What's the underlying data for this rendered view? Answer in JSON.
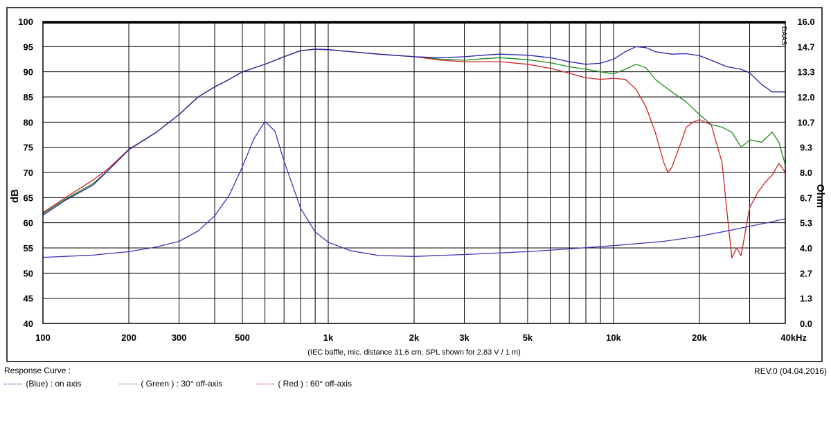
{
  "chart_data": {
    "type": "line",
    "caption": "(IEC baffle, mic. distance 31.6 cm, SPL shown for 2.83 V / 1 m)",
    "ylabel": "dB",
    "y2label": "Ohm",
    "watermark": "DAAS",
    "xscale": "log",
    "xlim": [
      100,
      40000
    ],
    "ylim": [
      40,
      100
    ],
    "y2lim": [
      0,
      16
    ],
    "grid": true,
    "x_ticks": [
      {
        "v": 100,
        "label": "100"
      },
      {
        "v": 200,
        "label": "200"
      },
      {
        "v": 300,
        "label": "300"
      },
      {
        "v": 500,
        "label": "500"
      },
      {
        "v": 1000,
        "label": "1k"
      },
      {
        "v": 2000,
        "label": "2k"
      },
      {
        "v": 3000,
        "label": "3k"
      },
      {
        "v": 5000,
        "label": "5k"
      },
      {
        "v": 10000,
        "label": "10k"
      },
      {
        "v": 20000,
        "label": "20k"
      },
      {
        "v": 40000,
        "label": "40kHz"
      }
    ],
    "y_ticks": [
      "100",
      "95",
      "90",
      "85",
      "80",
      "75",
      "70",
      "65",
      "60",
      "55",
      "50",
      "45",
      "40"
    ],
    "y2_ticks": [
      "16.0",
      "14.7",
      "13.3",
      "12.0",
      "10.7",
      "9.3",
      "8.0",
      "6.7",
      "5.3",
      "4.0",
      "2.7",
      "1.3",
      "0.0"
    ],
    "series": [
      {
        "name": "(Blue) : on axis",
        "color": "#2424a8",
        "points": [
          [
            100,
            61.5
          ],
          [
            120,
            64.5
          ],
          [
            150,
            67.5
          ],
          [
            170,
            70.5
          ],
          [
            200,
            74.5
          ],
          [
            250,
            78
          ],
          [
            300,
            81.5
          ],
          [
            350,
            85
          ],
          [
            400,
            87
          ],
          [
            450,
            88.5
          ],
          [
            500,
            90
          ],
          [
            600,
            91.5
          ],
          [
            700,
            93
          ],
          [
            800,
            94.2
          ],
          [
            900,
            94.5
          ],
          [
            1000,
            94.4
          ],
          [
            1200,
            94
          ],
          [
            1500,
            93.5
          ],
          [
            2000,
            93
          ],
          [
            2500,
            92.8
          ],
          [
            3000,
            93
          ],
          [
            3500,
            93.3
          ],
          [
            4000,
            93.5
          ],
          [
            5000,
            93.3
          ],
          [
            6000,
            92.8
          ],
          [
            7000,
            92
          ],
          [
            8000,
            91.5
          ],
          [
            9000,
            91.7
          ],
          [
            10000,
            92.5
          ],
          [
            11000,
            94
          ],
          [
            12000,
            95
          ],
          [
            13000,
            94.8
          ],
          [
            14000,
            94
          ],
          [
            16000,
            93.5
          ],
          [
            18000,
            93.6
          ],
          [
            20000,
            93.2
          ],
          [
            22000,
            92.3
          ],
          [
            25000,
            91
          ],
          [
            28000,
            90.5
          ],
          [
            30000,
            89.8
          ],
          [
            33000,
            87.5
          ],
          [
            36000,
            86
          ],
          [
            40000,
            86
          ]
        ]
      },
      {
        "name": "( Green ) : 30° off-axis",
        "color": "#1c8a1c",
        "points": [
          [
            100,
            61.8
          ],
          [
            120,
            64.7
          ],
          [
            150,
            67.8
          ],
          [
            170,
            70.5
          ],
          [
            200,
            74.6
          ],
          [
            250,
            78
          ],
          [
            300,
            81.5
          ],
          [
            350,
            85
          ],
          [
            400,
            87
          ],
          [
            450,
            88.5
          ],
          [
            500,
            90
          ],
          [
            600,
            91.5
          ],
          [
            700,
            93
          ],
          [
            800,
            94.2
          ],
          [
            900,
            94.5
          ],
          [
            1000,
            94.4
          ],
          [
            1200,
            94
          ],
          [
            1500,
            93.5
          ],
          [
            2000,
            93
          ],
          [
            2500,
            92.5
          ],
          [
            3000,
            92.3
          ],
          [
            3500,
            92.6
          ],
          [
            4000,
            92.8
          ],
          [
            5000,
            92.4
          ],
          [
            6000,
            91.8
          ],
          [
            7000,
            91
          ],
          [
            8000,
            90.5
          ],
          [
            9000,
            90
          ],
          [
            10000,
            89.6
          ],
          [
            11000,
            90.5
          ],
          [
            12000,
            91.5
          ],
          [
            13000,
            90.8
          ],
          [
            14000,
            88.5
          ],
          [
            16000,
            86
          ],
          [
            18000,
            84
          ],
          [
            20000,
            81.5
          ],
          [
            22000,
            79.5
          ],
          [
            24000,
            79
          ],
          [
            26000,
            78
          ],
          [
            28000,
            75
          ],
          [
            30000,
            76.5
          ],
          [
            33000,
            76
          ],
          [
            36000,
            78
          ],
          [
            38000,
            76
          ],
          [
            40000,
            71.5
          ]
        ]
      },
      {
        "name": "( Red ) : 60° off-axis",
        "color": "#cc2222",
        "points": [
          [
            100,
            62
          ],
          [
            120,
            65
          ],
          [
            150,
            68.5
          ],
          [
            170,
            70.8
          ],
          [
            200,
            74.6
          ],
          [
            250,
            78
          ],
          [
            300,
            81.5
          ],
          [
            350,
            85
          ],
          [
            400,
            87
          ],
          [
            450,
            88.5
          ],
          [
            500,
            90
          ],
          [
            600,
            91.5
          ],
          [
            700,
            93
          ],
          [
            800,
            94.2
          ],
          [
            900,
            94.5
          ],
          [
            1000,
            94.4
          ],
          [
            1200,
            94
          ],
          [
            1500,
            93.5
          ],
          [
            2000,
            93
          ],
          [
            2500,
            92.3
          ],
          [
            3000,
            92
          ],
          [
            3500,
            92
          ],
          [
            4000,
            92
          ],
          [
            5000,
            91.5
          ],
          [
            6000,
            90.7
          ],
          [
            7000,
            89.7
          ],
          [
            8000,
            88.8
          ],
          [
            9000,
            88.5
          ],
          [
            10000,
            88.7
          ],
          [
            11000,
            88.5
          ],
          [
            12000,
            86.5
          ],
          [
            13000,
            83
          ],
          [
            14000,
            78
          ],
          [
            15000,
            72
          ],
          [
            15500,
            70
          ],
          [
            16000,
            71
          ],
          [
            17000,
            75
          ],
          [
            18000,
            79
          ],
          [
            19000,
            80
          ],
          [
            20000,
            80.5
          ],
          [
            22000,
            79.5
          ],
          [
            24000,
            72
          ],
          [
            25000,
            62
          ],
          [
            26000,
            53
          ],
          [
            27000,
            55
          ],
          [
            28000,
            53.5
          ],
          [
            30000,
            63
          ],
          [
            32000,
            66
          ],
          [
            34000,
            68
          ],
          [
            36000,
            69.5
          ],
          [
            38000,
            71.8
          ],
          [
            40000,
            70
          ]
        ]
      },
      {
        "name": "Impedance",
        "color": "#4030b8",
        "axis": "right",
        "points": [
          [
            100,
            3.5
          ],
          [
            150,
            3.62
          ],
          [
            200,
            3.8
          ],
          [
            250,
            4.05
          ],
          [
            300,
            4.35
          ],
          [
            350,
            4.9
          ],
          [
            400,
            5.7
          ],
          [
            450,
            6.8
          ],
          [
            500,
            8.3
          ],
          [
            550,
            9.8
          ],
          [
            600,
            10.7
          ],
          [
            650,
            10.2
          ],
          [
            700,
            8.6
          ],
          [
            800,
            6.1
          ],
          [
            900,
            4.85
          ],
          [
            1000,
            4.3
          ],
          [
            1200,
            3.85
          ],
          [
            1500,
            3.6
          ],
          [
            2000,
            3.55
          ],
          [
            3000,
            3.65
          ],
          [
            5000,
            3.8
          ],
          [
            7000,
            3.95
          ],
          [
            10000,
            4.12
          ],
          [
            15000,
            4.35
          ],
          [
            20000,
            4.62
          ],
          [
            25000,
            4.9
          ],
          [
            30000,
            5.15
          ],
          [
            35000,
            5.35
          ],
          [
            40000,
            5.55
          ]
        ]
      }
    ]
  },
  "legend": {
    "title": "Response Curve :",
    "items": [
      {
        "label": "(Blue)  : on axis",
        "color": "#2424a8"
      },
      {
        "label": "( Green ) : 30° off-axis",
        "color": "#1c8a1c"
      },
      {
        "label": "( Red ) : 60° off-axis",
        "color": "#cc2222"
      }
    ]
  },
  "revision": "REV.0 (04.04.2016)"
}
